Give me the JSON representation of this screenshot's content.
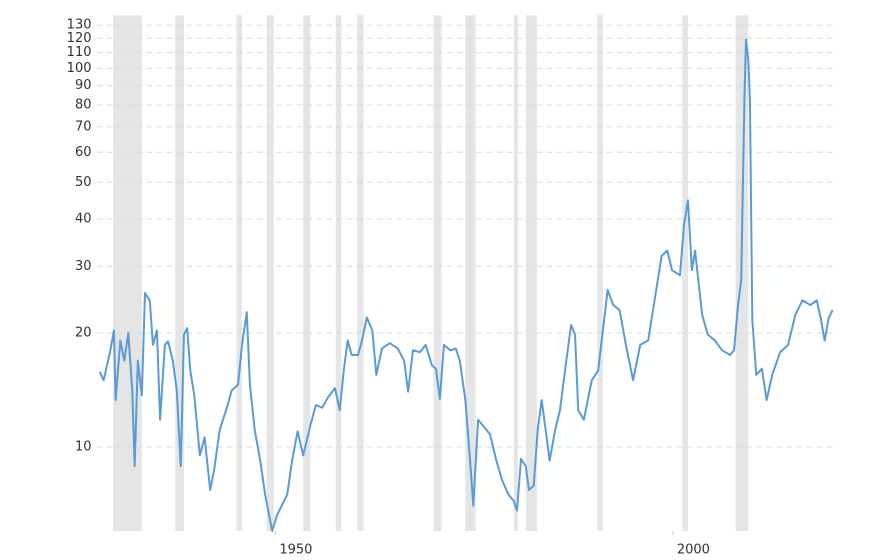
{
  "chart_data": {
    "type": "line",
    "color": "#5b9bd5",
    "recession_color": "#e5e5e5",
    "y_log": true,
    "grid": true,
    "xlim": [
      1927.5,
      2020.4
    ],
    "xticks": [
      1950,
      2000
    ],
    "ylim": [
      6,
      138
    ],
    "yticks": [
      10,
      20,
      30,
      40,
      50,
      60,
      70,
      80,
      90,
      100,
      110,
      120,
      130
    ],
    "recessions": [
      [
        1929.6,
        1933.2
      ],
      [
        1937.4,
        1938.5
      ],
      [
        1945.1,
        1945.8
      ],
      [
        1948.9,
        1949.8
      ],
      [
        1953.5,
        1954.4
      ],
      [
        1957.6,
        1958.3
      ],
      [
        1960.3,
        1961.1
      ],
      [
        1969.9,
        1970.9
      ],
      [
        1973.9,
        1975.2
      ],
      [
        1980.0,
        1980.5
      ],
      [
        1981.5,
        1982.9
      ],
      [
        1990.5,
        1991.2
      ],
      [
        2001.2,
        2001.9
      ],
      [
        2007.9,
        2009.5
      ]
    ],
    "x": [
      1927.9,
      1928.4,
      1929.2,
      1929.7,
      1929.9,
      1930.5,
      1931.0,
      1931.5,
      1932.0,
      1932.3,
      1932.7,
      1933.2,
      1933.6,
      1934.2,
      1934.6,
      1935.1,
      1935.5,
      1936.1,
      1936.5,
      1937.1,
      1937.6,
      1938.1,
      1938.5,
      1938.9,
      1939.3,
      1939.8,
      1940.5,
      1941.1,
      1941.8,
      1942.3,
      1943.0,
      1944.0,
      1944.5,
      1945.3,
      1945.8,
      1946.4,
      1946.8,
      1947.4,
      1948.1,
      1948.7,
      1949.6,
      1950.2,
      1950.8,
      1951.5,
      1952.1,
      1952.8,
      1953.5,
      1954.4,
      1955.1,
      1955.9,
      1956.6,
      1957.5,
      1958.1,
      1958.6,
      1959.1,
      1959.6,
      1960.4,
      1960.9,
      1961.5,
      1962.2,
      1962.7,
      1963.4,
      1964.4,
      1965.4,
      1966.2,
      1966.7,
      1967.3,
      1968.2,
      1968.9,
      1969.7,
      1970.2,
      1970.7,
      1971.2,
      1972.0,
      1972.7,
      1973.2,
      1973.9,
      1974.5,
      1974.9,
      1975.5,
      1976.4,
      1977.0,
      1977.8,
      1978.5,
      1979.3,
      1980.0,
      1980.4,
      1980.9,
      1981.5,
      1981.9,
      1982.5,
      1983.0,
      1983.5,
      1984.0,
      1984.5,
      1985.2,
      1985.8,
      1986.6,
      1987.2,
      1987.7,
      1988.1,
      1988.8,
      1989.8,
      1990.6,
      1991.2,
      1991.8,
      1992.5,
      1993.3,
      1994.1,
      1995.0,
      1995.9,
      1996.9,
      1997.7,
      1998.6,
      1999.3,
      1999.9,
      2000.9,
      2001.4,
      2001.9,
      2002.4,
      2002.8,
      2003.2,
      2003.7,
      2004.4,
      2005.3,
      2006.2,
      2007.2,
      2007.7,
      2008.2,
      2008.6,
      2009.0,
      2009.2,
      2009.5,
      2009.7,
      2010.0,
      2010.5,
      2011.2,
      2011.8,
      2012.5,
      2013.5,
      2014.5,
      2015.4,
      2016.3,
      2017.3,
      2018.1,
      2018.6,
      2019.1,
      2019.6,
      2020.1
    ],
    "values": [
      15.8,
      15.0,
      17.8,
      20.3,
      13.3,
      19.1,
      16.9,
      20,
      14.1,
      8.9,
      16.9,
      13.7,
      25.5,
      24.4,
      18.6,
      20.3,
      11.8,
      18.6,
      19,
      16.9,
      14.1,
      8.9,
      19.8,
      20.6,
      15.9,
      13.7,
      9.5,
      10.6,
      7.7,
      8.7,
      11.1,
      12.9,
      14.1,
      14.6,
      18.6,
      22.7,
      14.6,
      11.1,
      9.2,
      7.5,
      6.0,
      6.6,
      7.0,
      7.5,
      9.2,
      11.0,
      9.5,
      11.4,
      12.9,
      12.7,
      13.5,
      14.3,
      12.5,
      15.9,
      19.1,
      17.5,
      17.5,
      19.1,
      22.0,
      20.3,
      15.5,
      18.2,
      18.8,
      18.2,
      16.9,
      14.0,
      18.0,
      17.8,
      18.6,
      16.4,
      16.1,
      13.4,
      18.6,
      18.0,
      18.2,
      16.9,
      13.3,
      9.2,
      7.0,
      11.8,
      11.2,
      10.8,
      9.2,
      8.2,
      7.5,
      7.2,
      6.8,
      9.3,
      8.9,
      7.7,
      7.9,
      11.1,
      13.3,
      11.1,
      9.2,
      11.1,
      12.5,
      16.9,
      21.0,
      19.8,
      12.5,
      11.8,
      15.0,
      15.9,
      20.3,
      26,
      23.7,
      23.0,
      18.6,
      15.0,
      18.6,
      19.1,
      24.4,
      32,
      33,
      29.3,
      28.4,
      38.5,
      44.8,
      29.3,
      33,
      27.6,
      22.3,
      19.8,
      19.1,
      18.0,
      17.5,
      18.0,
      23.7,
      27.6,
      82,
      119,
      105,
      82,
      21.6,
      15.5,
      16.1,
      13.3,
      15.5,
      17.8,
      18.6,
      22.3,
      24.4,
      23.7,
      24.4,
      21.9,
      19.1,
      21.9,
      23.0
    ]
  }
}
